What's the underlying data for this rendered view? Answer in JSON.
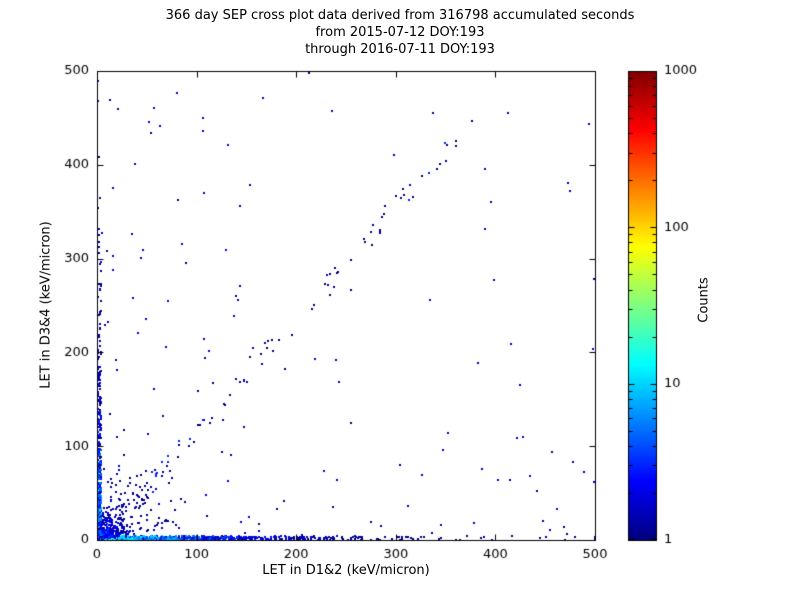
{
  "title": {
    "line1": "366 day SEP cross plot data derived from 316798 accumulated seconds",
    "line2": "from 2015-07-12 DOY:193",
    "line3": "through 2016-07-11 DOY:193"
  },
  "chart_data": {
    "type": "scatter",
    "subtype": "2d-histogram-cross-plot",
    "xlabel": "LET in D1&2 (keV/micron)",
    "ylabel": "LET in D3&4 (keV/micron)",
    "xlim": [
      0,
      500
    ],
    "ylim": [
      0,
      500
    ],
    "xticks": [
      0,
      100,
      200,
      300,
      400,
      500
    ],
    "yticks": [
      0,
      100,
      200,
      300,
      400,
      500
    ],
    "grid": false,
    "colorbar": {
      "label": "Counts",
      "scale": "log",
      "min": 1,
      "max": 1000,
      "ticks": [
        1,
        10,
        100,
        1000
      ],
      "colormap": "jet"
    },
    "point_color_low": "#00008f",
    "point_color_high": "#7f0000",
    "clusters": [
      {
        "name": "origin-hot-core",
        "type": "exp2d",
        "n": 600,
        "x_scale": 3,
        "y_scale": 3,
        "x_max": 25,
        "y_max": 25,
        "count_base": 120,
        "count_falloff": 4
      },
      {
        "name": "x-axis-band",
        "type": "band-x",
        "n": 900,
        "x_scale": 90,
        "x_max": 500,
        "y_max": 4,
        "count_max": 25
      },
      {
        "name": "y-axis-band",
        "type": "band-y",
        "n": 600,
        "y_scale": 70,
        "y_max": 500,
        "x_max": 4,
        "count_max": 18
      },
      {
        "name": "near-origin-fan",
        "type": "fan",
        "n": 500,
        "scale": 22,
        "theta_min": 10,
        "theta_max": 80,
        "max": 95,
        "count_max": 7
      },
      {
        "name": "diagonal-band",
        "type": "diag",
        "n": 90,
        "t_min": 40,
        "t_max": 380,
        "slope": 1.18,
        "spread": 14,
        "count_max": 3
      },
      {
        "name": "sparse-background",
        "type": "uniform",
        "n": 160,
        "x_max": 500,
        "y_max": 500,
        "bias": 1.8,
        "count_max": 2
      }
    ],
    "seed": 42
  }
}
